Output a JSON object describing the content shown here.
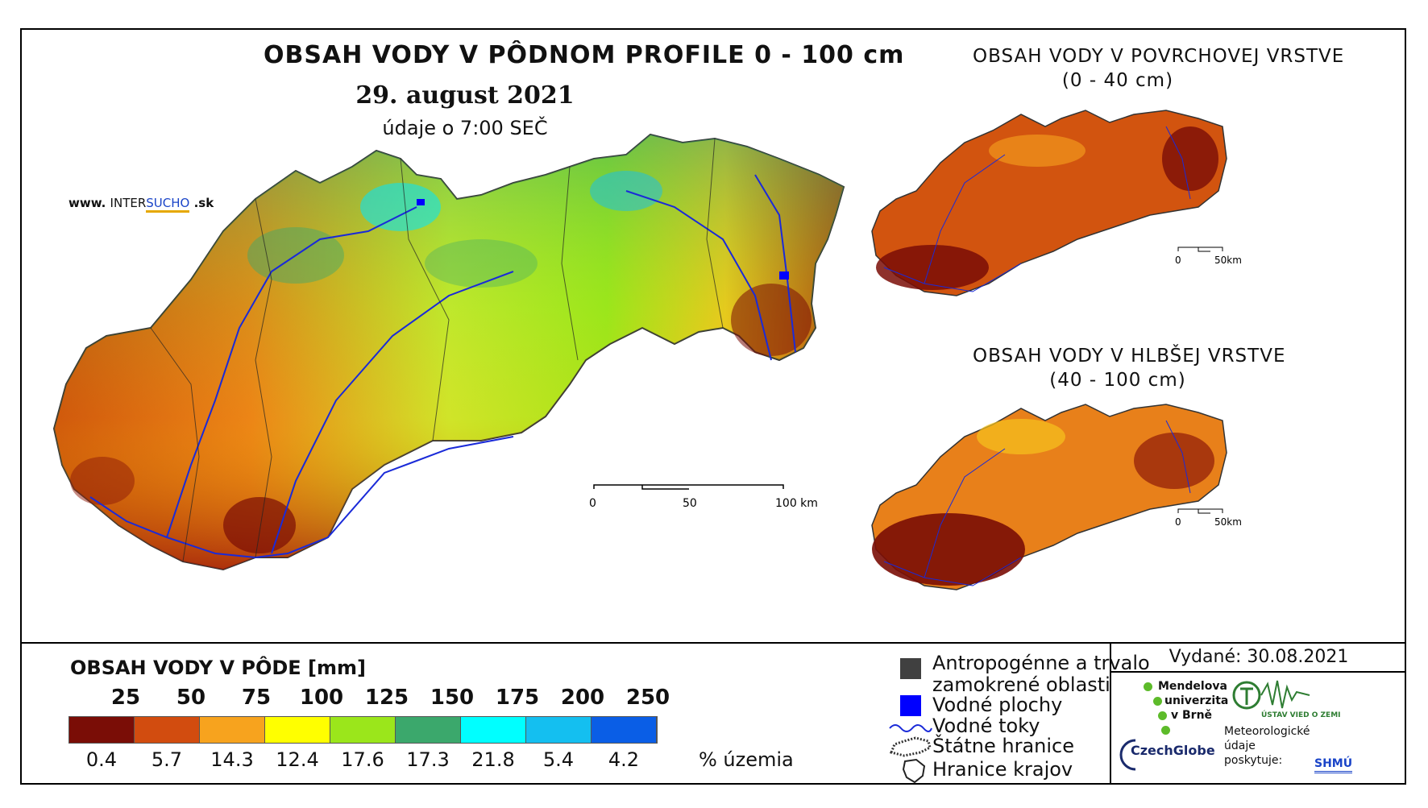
{
  "title": "OBSAH VODY V PÔDNOM PROFILE 0 - 100 cm",
  "date": "29. august 2021",
  "time": "údaje o 7:00 SEČ",
  "website": {
    "prefix": "www.",
    "inter": "INTER",
    "sucho": "SUCHO",
    "suffix": ".sk"
  },
  "inset_top": {
    "title_line1": "OBSAH VODY V POVRCHOVEJ VRSTVE",
    "title_line2": "(0 - 40 cm)"
  },
  "inset_bottom": {
    "title_line1": "OBSAH VODY V HLBŠEJ VRSTVE",
    "title_line2": "(40 - 100 cm)"
  },
  "scale_main": {
    "labels": [
      "0",
      "50",
      "100 km"
    ]
  },
  "scale_inset": {
    "labels": [
      "0",
      "50km"
    ]
  },
  "legend": {
    "title": "OBSAH VODY V PÔDE [mm]",
    "thresholds": [
      "25",
      "50",
      "75",
      "100",
      "125",
      "150",
      "175",
      "200",
      "250"
    ],
    "colors": [
      "#7a0d06",
      "#d24c0f",
      "#f7a31e",
      "#ffff00",
      "#9be61b",
      "#3ba86c",
      "#00ffff",
      "#14bff0",
      "#0a5ee6"
    ],
    "percentages": [
      "0.4",
      "5.7",
      "14.3",
      "12.4",
      "17.6",
      "17.3",
      "21.8",
      "5.4",
      "4.2"
    ],
    "percent_unit": "% územia"
  },
  "key": {
    "anthropogenic_line1": "Antropogénne a trvalo",
    "anthropogenic_line2": "zamokrené oblasti",
    "water_bodies": "Vodné plochy",
    "rivers": "Vodné toky",
    "state_border": "Štátne hranice",
    "region_border": "Hranice krajov",
    "anthro_color": "#404040",
    "water_color": "#0000ff"
  },
  "issued": "Vydané: 30.08.2021",
  "logos": {
    "mendelu": [
      "Mendelova",
      "univerzita",
      "v Brně"
    ],
    "czechglobe": "CzechGlobe",
    "ustav": "ÚSTAV VIED O ZEMI",
    "meteo": [
      "Meteorologické",
      "údaje",
      "poskytuje:"
    ],
    "shmu": "SHMÚ"
  }
}
